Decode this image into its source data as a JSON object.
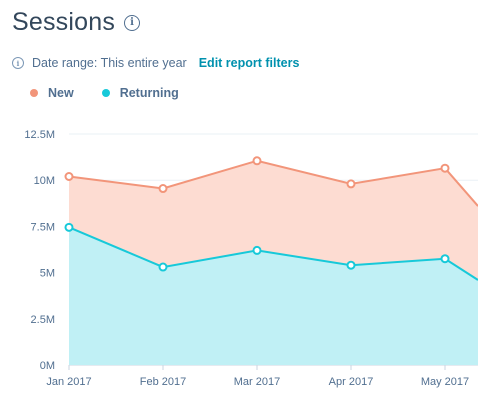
{
  "header": {
    "title": "Sessions",
    "info_icon": "info-icon"
  },
  "filters": {
    "date_range_text": "Date range: This entire year",
    "edit_link": "Edit report filters"
  },
  "colors": {
    "new_line": "#f2957a",
    "new_fill": "#fddcd2",
    "returning_line": "#17c9d9",
    "returning_fill": "#c0f0f5",
    "grid": "#eaf0f6"
  },
  "chart_data": {
    "type": "area",
    "title": "Sessions",
    "categories": [
      "Jan 2017",
      "Feb 2017",
      "Mar 2017",
      "Apr 2017",
      "May 2017"
    ],
    "yticks": [
      "0M",
      "2.5M",
      "5M",
      "7.5M",
      "10M",
      "12.5M"
    ],
    "ylim": [
      0,
      12.5
    ],
    "grid": true,
    "legend_position": "top-left",
    "series": [
      {
        "name": "New",
        "values": [
          10.2,
          9.55,
          11.05,
          9.8,
          10.65
        ],
        "continues_to": 8.6
      },
      {
        "name": "Returning",
        "values": [
          7.45,
          5.3,
          6.2,
          5.4,
          5.75
        ],
        "continues_to": 4.6
      }
    ]
  }
}
